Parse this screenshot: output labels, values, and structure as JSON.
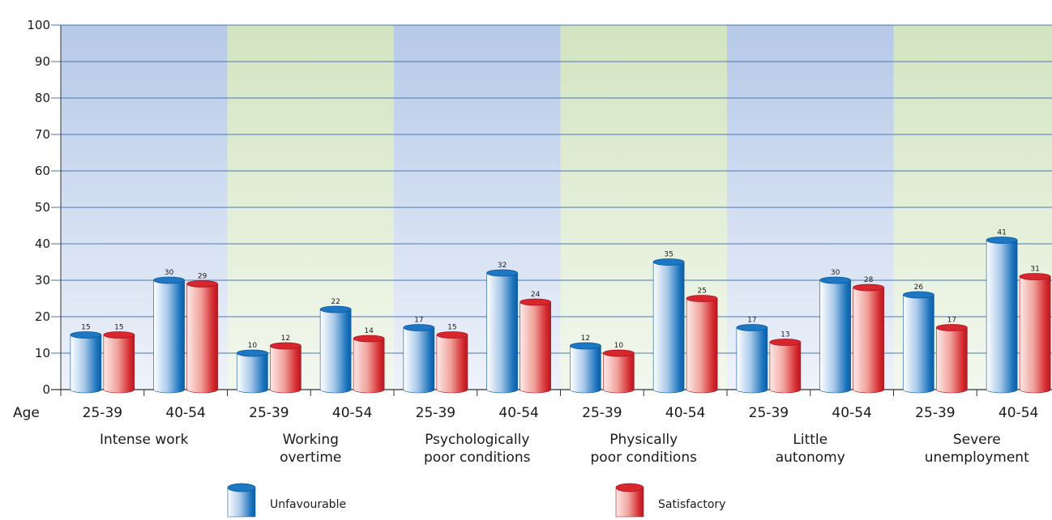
{
  "chart_data": {
    "type": "bar",
    "ylim": [
      0,
      100
    ],
    "yticks": [
      0,
      10,
      20,
      30,
      40,
      50,
      60,
      70,
      80,
      90,
      100
    ],
    "age_label": "Age",
    "groups": [
      {
        "label": "Intense work",
        "label_lines": [
          "Intense work"
        ]
      },
      {
        "label": "Working overtime",
        "label_lines": [
          "Working",
          "overtime"
        ]
      },
      {
        "label": "Psychologically poor conditions",
        "label_lines": [
          "Psychologically",
          "poor conditions"
        ]
      },
      {
        "label": "Physically poor conditions",
        "label_lines": [
          "Physically",
          "poor conditions"
        ]
      },
      {
        "label": "Little autonomy",
        "label_lines": [
          "Little",
          "autonomy"
        ]
      },
      {
        "label": "Severe unemployment",
        "label_lines": [
          "Severe",
          "unemployment"
        ]
      }
    ],
    "categories": [
      "25-39",
      "40-54",
      "25-39",
      "40-54",
      "25-39",
      "40-54",
      "25-39",
      "40-54",
      "25-39",
      "40-54",
      "25-39",
      "40-54"
    ],
    "series": [
      {
        "name": "Unfavourable",
        "color": "#1170b8",
        "values": [
          15,
          30,
          10,
          22,
          17,
          32,
          12,
          35,
          17,
          30,
          26,
          41
        ]
      },
      {
        "name": "Satisfactory",
        "color": "#d3202e",
        "values": [
          15,
          29,
          12,
          14,
          15,
          24,
          10,
          25,
          13,
          28,
          17,
          31
        ]
      }
    ],
    "band_colors": [
      "#b8cbe9",
      "#d6e6c6"
    ],
    "legend_position": "bottom"
  }
}
